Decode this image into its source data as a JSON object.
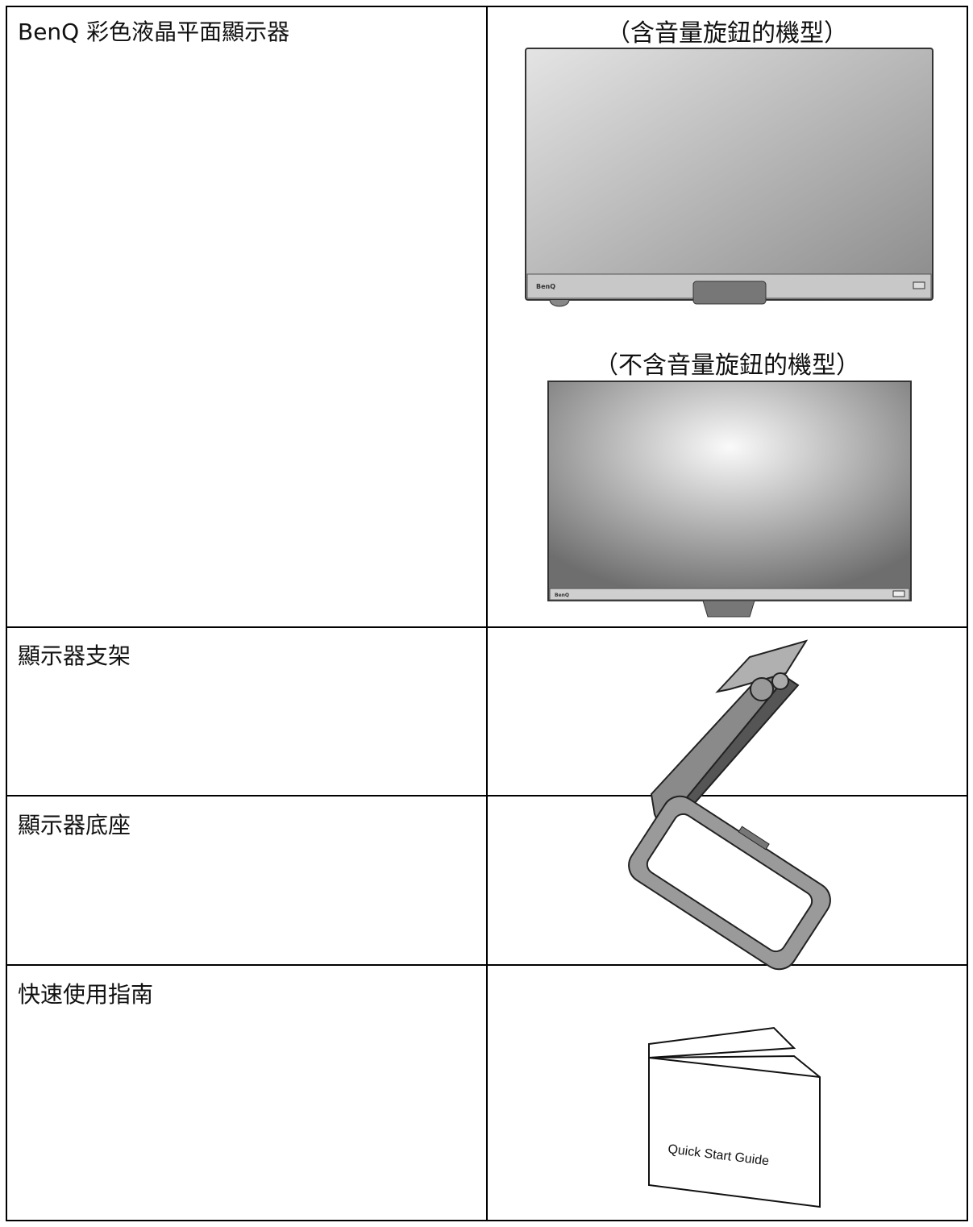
{
  "table": {
    "rows": [
      {
        "label": "BenQ 彩色液晶平面顯示器",
        "captions": [
          "（含音量旋鈕的機型）",
          "（不含音量旋鈕的機型）"
        ],
        "logos": [
          "BenQ",
          "BenQ"
        ]
      },
      {
        "label": "顯示器支架"
      },
      {
        "label": "顯示器底座"
      },
      {
        "label": "快速使用指南",
        "image_text": "Quick Start Guide"
      }
    ]
  }
}
